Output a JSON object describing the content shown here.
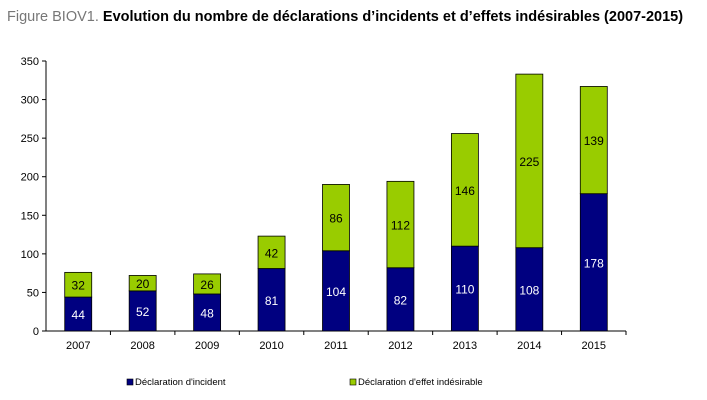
{
  "chart_data": {
    "type": "bar",
    "stacked": true,
    "title_prefix": "Figure BIOV1.",
    "title": "Evolution du nombre de déclarations d’incidents et d’effets indésirables (2007-2015)",
    "xlabel": "",
    "ylabel": "",
    "ylim": [
      0,
      350
    ],
    "yticks": [
      0,
      50,
      100,
      150,
      200,
      250,
      300,
      350
    ],
    "grid": false,
    "legend_position": "bottom",
    "categories": [
      "2007",
      "2008",
      "2009",
      "2010",
      "2011",
      "2012",
      "2013",
      "2014",
      "2015"
    ],
    "series": [
      {
        "name": "Déclaration d'incident",
        "color": "#000080",
        "label_color": "#ffffff",
        "values": [
          44,
          52,
          48,
          81,
          104,
          82,
          110,
          108,
          178
        ]
      },
      {
        "name": "Déclaration d'effet indésirable",
        "color": "#99cc00",
        "label_color": "#000000",
        "values": [
          32,
          20,
          26,
          42,
          86,
          112,
          146,
          225,
          139
        ]
      }
    ]
  }
}
